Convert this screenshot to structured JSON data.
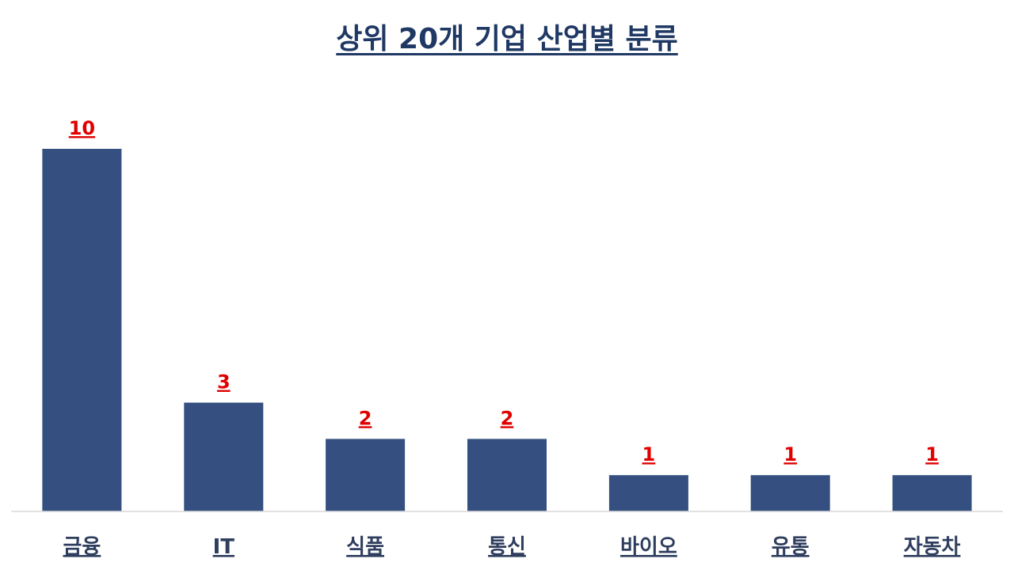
{
  "chart_data": {
    "type": "bar",
    "title": "상위 20개 기업 산업별 분류",
    "xlabel": "",
    "ylabel": "",
    "categories": [
      "금융",
      "IT",
      "식품",
      "통신",
      "바이오",
      "유통",
      "자동차"
    ],
    "values": [
      10,
      3,
      2,
      2,
      1,
      1,
      1
    ],
    "data_labels": [
      "10",
      "3",
      "2",
      "2",
      "1",
      "1",
      "1"
    ],
    "ylim": [
      0,
      10
    ],
    "grid": false,
    "legend": "none",
    "colors": {
      "bar": "#344f80",
      "value_label": "#e00000",
      "category_label": "#2f3e5e",
      "title": "#1f3864",
      "axis": "#d9d9d9"
    }
  }
}
